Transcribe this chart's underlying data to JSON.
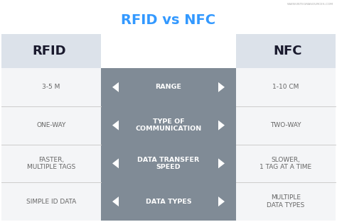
{
  "title": "RFID vs NFC",
  "title_color": "#3399ff",
  "watermark": "WWW.INTEGRASOURCES.COM",
  "header_left": "RFID",
  "header_right": "NFC",
  "header_bg": "#dce2ea",
  "header_text_color": "#1a1a2e",
  "row_bg_light": "#f4f5f7",
  "center_bg": "#808b96",
  "rows": [
    {
      "left": "3-5 M",
      "center": "RANGE",
      "right": "1-10 CM"
    },
    {
      "left": "ONE-WAY",
      "center": "TYPE OF\nCOMMUNICATION",
      "right": "TWO-WAY"
    },
    {
      "left": "FASTER,\nMULTIPLE TAGS",
      "center": "DATA TRANSFER\nSPEED",
      "right": "SLOWER,\n1 TAG AT A TIME"
    },
    {
      "left": "SIMPLE ID DATA",
      "center": "DATA TYPES",
      "right": "MULTIPLE\nDATA TYPES"
    }
  ],
  "bg_color": "#ffffff",
  "left_text_color": "#666666",
  "right_text_color": "#666666",
  "center_text_color": "#ffffff",
  "arrow_color": "#ffffff",
  "divider_color": "#cccccc"
}
